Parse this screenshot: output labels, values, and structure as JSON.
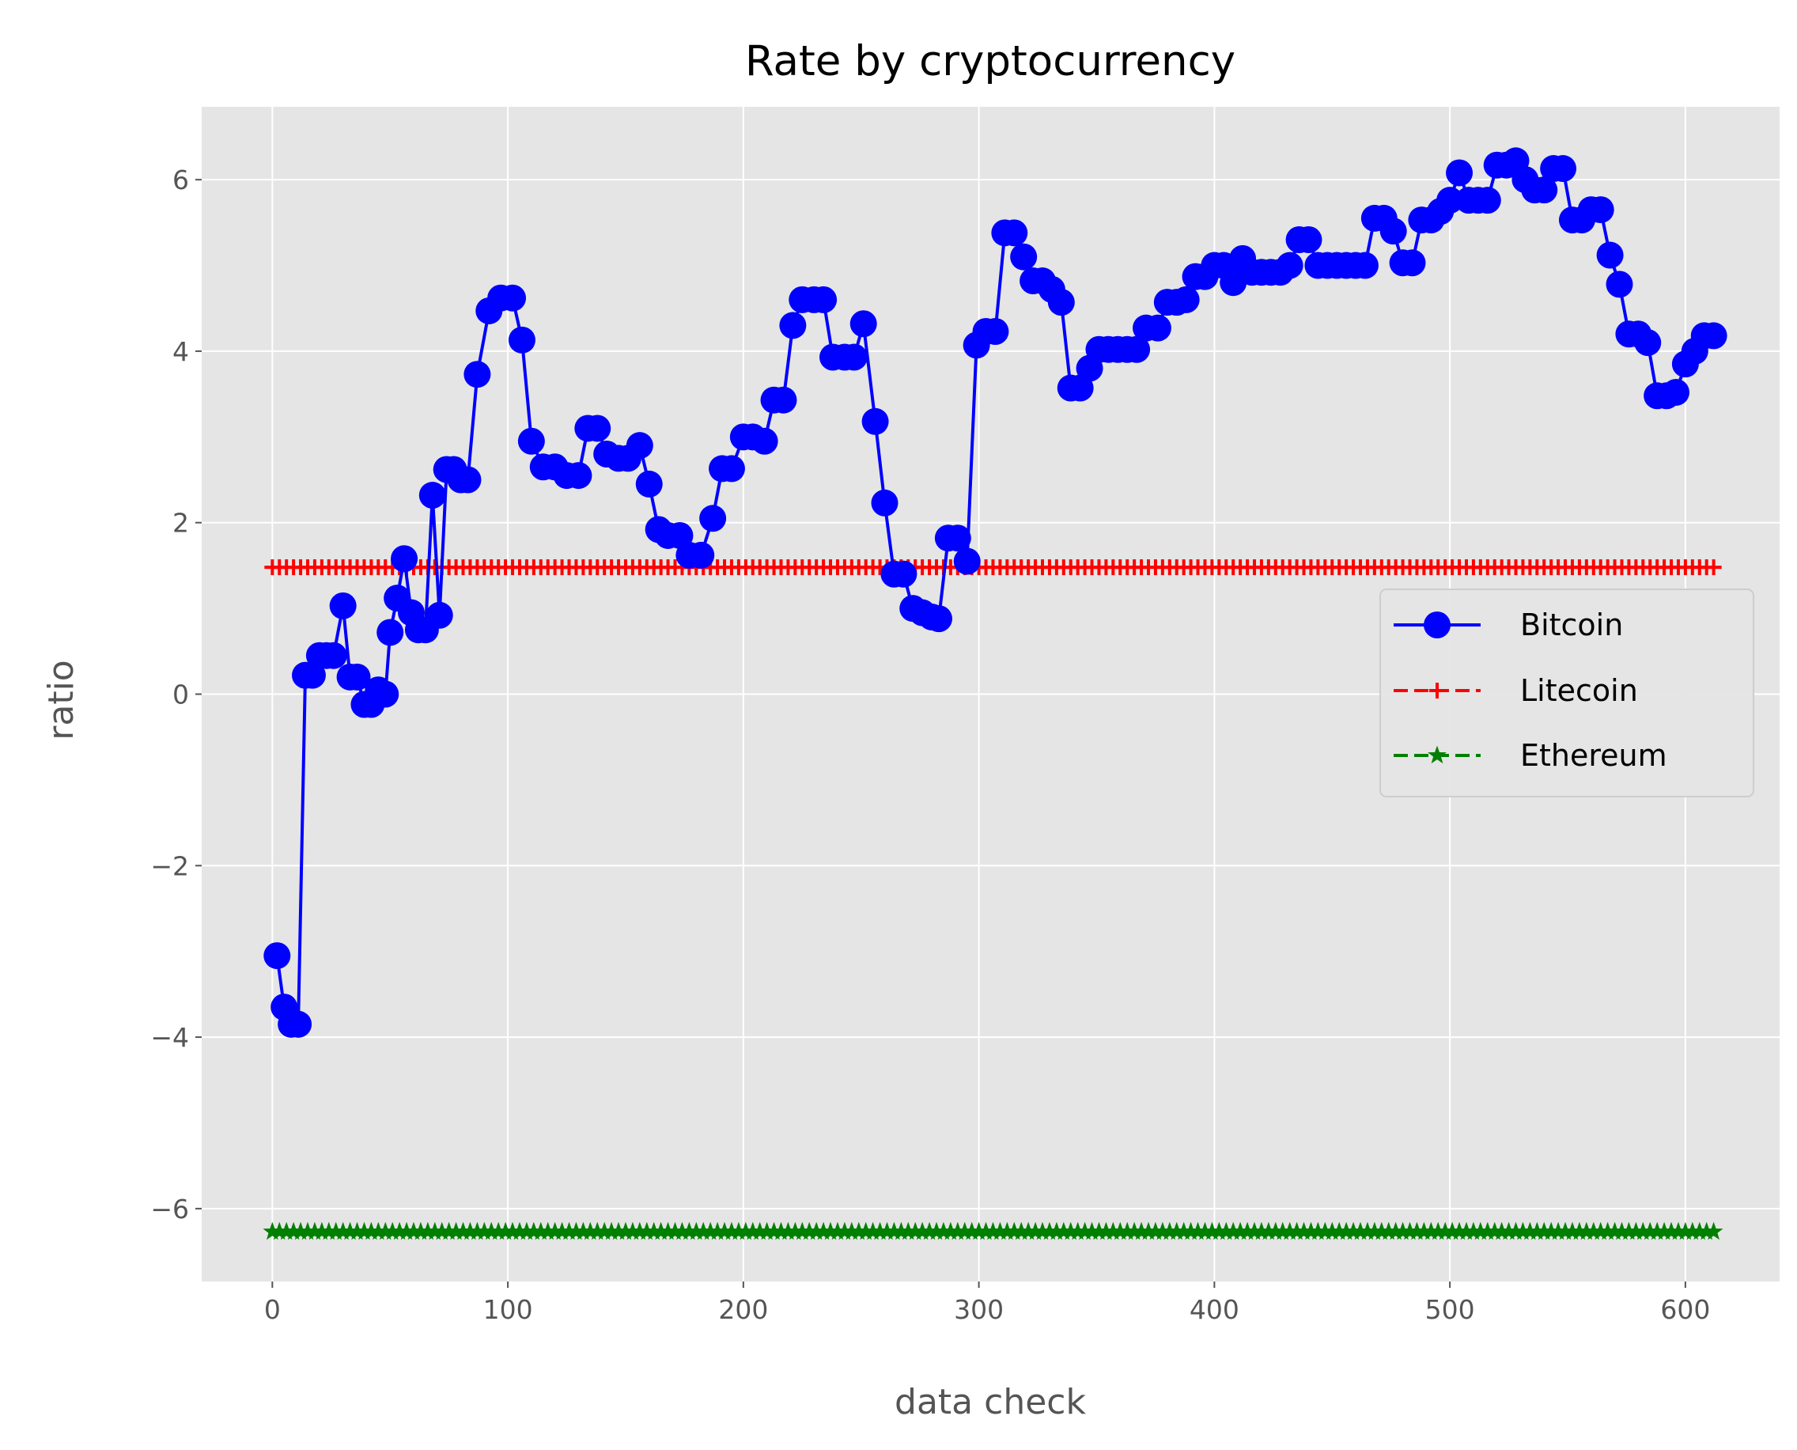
{
  "chart_data": {
    "type": "line",
    "title": "Rate by cryptocurrency",
    "xlabel": "data check",
    "ylabel": "ratio",
    "xlim": [
      -30,
      640
    ],
    "ylim": [
      -6.85,
      6.85
    ],
    "xticks": [
      0,
      100,
      200,
      300,
      400,
      500,
      600
    ],
    "yticks": [
      -6,
      -4,
      -2,
      0,
      2,
      4,
      6
    ],
    "xtick_labels": [
      "0",
      "100",
      "200",
      "300",
      "400",
      "500",
      "600"
    ],
    "ytick_labels": [
      "−6",
      "−4",
      "−2",
      "0",
      "2",
      "4",
      "6"
    ],
    "grid": true,
    "legend_position": "center-right",
    "background": "#e5e5e5",
    "series": [
      {
        "name": "Bitcoin",
        "color": "#0000ff",
        "marker": "circle",
        "linestyle": "solid",
        "x": [
          2,
          5,
          8,
          11,
          14,
          17,
          20,
          23,
          26,
          30,
          33,
          36,
          39,
          42,
          45,
          48,
          50,
          53,
          56,
          59,
          62,
          65,
          68,
          71,
          74,
          77,
          80,
          83,
          87,
          92,
          97,
          102,
          106,
          110,
          115,
          120,
          125,
          130,
          134,
          138,
          142,
          147,
          151,
          156,
          160,
          164,
          168,
          173,
          177,
          182,
          187,
          191,
          195,
          200,
          204,
          209,
          213,
          217,
          221,
          225,
          230,
          234,
          238,
          243,
          247,
          251,
          256,
          260,
          264,
          268,
          272,
          276,
          280,
          283,
          287,
          291,
          295,
          299,
          303,
          307,
          311,
          315,
          319,
          323,
          327,
          331,
          335,
          339,
          343,
          347,
          351,
          355,
          359,
          363,
          367,
          371,
          376,
          380,
          384,
          388,
          392,
          396,
          400,
          404,
          408,
          412,
          416,
          420,
          424,
          428,
          432,
          436,
          440,
          444,
          448,
          452,
          456,
          460,
          464,
          468,
          472,
          476,
          480,
          484,
          488,
          492,
          496,
          500,
          504,
          508,
          512,
          516,
          520,
          524,
          528,
          532,
          536,
          540,
          544,
          548,
          552,
          556,
          560,
          564,
          568,
          572,
          576,
          580,
          584,
          588,
          592,
          596,
          600,
          604,
          608,
          612
        ],
        "y": [
          -3.05,
          -3.65,
          -3.85,
          -3.85,
          0.22,
          0.22,
          0.45,
          0.45,
          0.45,
          1.03,
          0.2,
          0.2,
          -0.12,
          -0.12,
          0.05,
          0.0,
          0.72,
          1.12,
          1.58,
          0.95,
          0.75,
          0.75,
          2.32,
          0.92,
          2.62,
          2.62,
          2.5,
          2.5,
          3.73,
          4.47,
          4.62,
          4.62,
          4.13,
          2.95,
          2.65,
          2.65,
          2.55,
          2.55,
          3.1,
          3.1,
          2.8,
          2.75,
          2.75,
          2.9,
          2.45,
          1.92,
          1.85,
          1.85,
          1.62,
          1.62,
          2.05,
          2.63,
          2.63,
          3.0,
          3.0,
          2.95,
          3.43,
          3.43,
          4.3,
          4.6,
          4.6,
          4.6,
          3.93,
          3.93,
          3.93,
          4.32,
          3.18,
          2.23,
          1.4,
          1.4,
          1.0,
          0.95,
          0.9,
          0.88,
          1.82,
          1.82,
          1.55,
          4.07,
          4.23,
          4.23,
          5.38,
          5.38,
          5.1,
          4.82,
          4.82,
          4.72,
          4.57,
          3.57,
          3.57,
          3.8,
          4.02,
          4.02,
          4.02,
          4.02,
          4.02,
          4.27,
          4.27,
          4.57,
          4.57,
          4.6,
          4.87,
          4.87,
          5.0,
          5.0,
          4.8,
          5.08,
          4.92,
          4.92,
          4.92,
          4.92,
          5.0,
          5.3,
          5.3,
          5.0,
          5.0,
          5.0,
          5.0,
          5.0,
          5.0,
          5.55,
          5.55,
          5.4,
          5.03,
          5.03,
          5.53,
          5.53,
          5.63,
          5.76,
          6.08,
          5.76,
          5.76,
          5.76,
          6.17,
          6.17,
          6.22,
          6.0,
          5.88,
          5.88,
          6.13,
          6.13,
          5.53,
          5.53,
          5.65,
          5.65,
          5.12,
          4.78,
          4.2,
          4.2,
          4.1,
          3.48,
          3.48,
          3.52,
          3.85,
          4.0,
          4.18,
          4.18
        ]
      },
      {
        "name": "Litecoin",
        "color": "#ff0000",
        "marker": "plus",
        "linestyle": "dashed",
        "x_range": [
          0,
          612
        ],
        "x_step": 3,
        "value": 1.48
      },
      {
        "name": "Ethereum",
        "color": "#008000",
        "marker": "star",
        "linestyle": "dashed",
        "x_range": [
          0,
          612
        ],
        "x_step": 3,
        "value": -6.27
      }
    ]
  }
}
